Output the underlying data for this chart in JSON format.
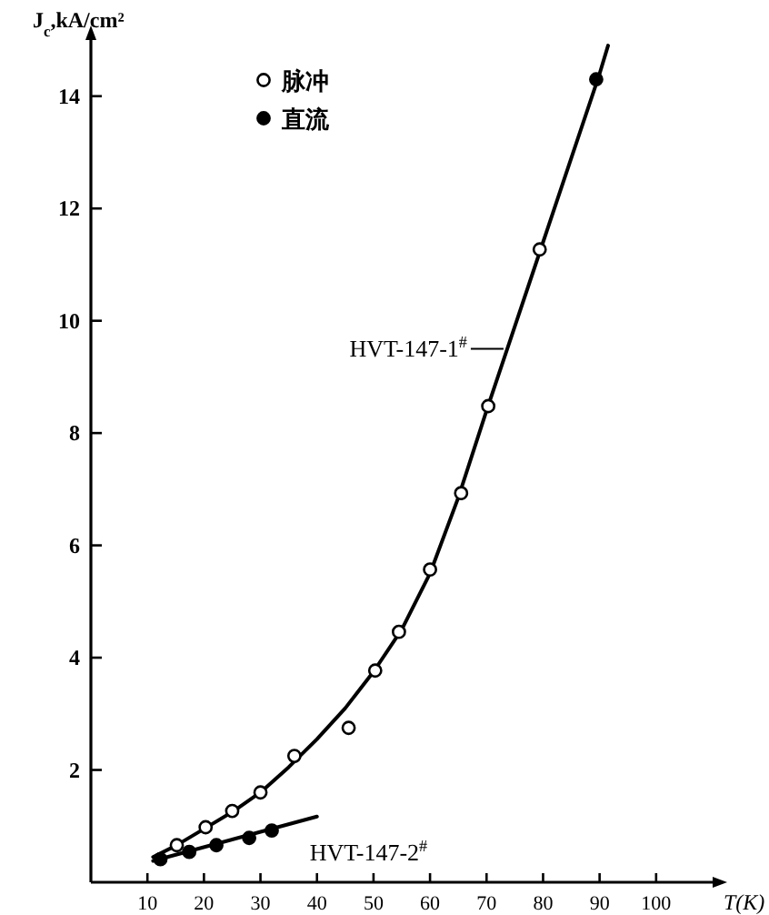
{
  "chart_data": {
    "type": "scatter",
    "xlabel": "T(K)",
    "ylabel": "J$_{c}$,kA/cm²",
    "xlim": [
      0,
      110
    ],
    "ylim": [
      0,
      15
    ],
    "xticks": [
      10,
      20,
      30,
      40,
      50,
      60,
      70,
      80,
      90,
      100
    ],
    "yticks": [
      2,
      4,
      6,
      8,
      10,
      12,
      14
    ],
    "legend": "top left",
    "marker": "circle",
    "grid": false,
    "series": [
      {
        "name": "脉冲",
        "color": "#ffffff",
        "x": [
          15.2,
          20.3,
          25,
          30,
          36,
          45.6,
          50.3,
          54.5,
          60,
          65.5,
          70.3,
          79.4
        ],
        "values": [
          0.66,
          0.98,
          1.27,
          1.6,
          2.25,
          2.75,
          3.77,
          4.46,
          5.57,
          6.93,
          8.48,
          11.27
        ]
      },
      {
        "name": "直流",
        "color": "#000000",
        "x": [
          12.3,
          17.4,
          22.2,
          28,
          32,
          89.4
        ],
        "values": [
          0.41,
          0.54,
          0.66,
          0.79,
          0.92,
          14.3
        ]
      },
      {
        "type": "line",
        "marker": "none",
        "color": "#000000",
        "x": [
          11,
          15,
          20,
          25,
          30,
          35,
          40,
          45,
          50,
          55,
          60,
          65,
          70,
          75,
          80,
          85,
          90,
          91.5
        ],
        "values": [
          0.45,
          0.65,
          0.95,
          1.25,
          1.6,
          2.05,
          2.55,
          3.1,
          3.75,
          4.5,
          5.5,
          6.85,
          8.4,
          9.9,
          11.4,
          12.9,
          14.4,
          14.9
        ]
      },
      {
        "type": "line",
        "marker": "none",
        "color": "#000000",
        "x": [
          11,
          40
        ],
        "values": [
          0.38,
          1.17
        ]
      }
    ],
    "annotations": [
      {
        "text": "HVT-147-1$^{#}$",
        "x": 73,
        "y": 9.5
      },
      {
        "text": "HVT-147-2$^{#}$",
        "x": 40,
        "y": 1.17
      }
    ]
  }
}
